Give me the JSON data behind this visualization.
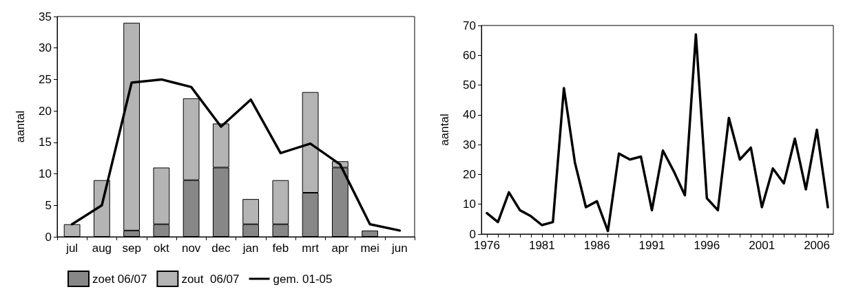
{
  "chart_data": [
    {
      "type": "bar",
      "ylabel": "aantal",
      "stacked": true,
      "legend": "bottom",
      "grid": false,
      "marker": "none",
      "categories": [
        "jul",
        "aug",
        "sep",
        "okt",
        "nov",
        "dec",
        "jan",
        "feb",
        "mrt",
        "apr",
        "mei",
        "jun"
      ],
      "ylim": [
        0,
        35
      ],
      "yticks": [
        0,
        5,
        10,
        15,
        20,
        25,
        30,
        35
      ],
      "series": [
        {
          "name": "zoet 06/07",
          "color": "#878787",
          "values": [
            0,
            0,
            1,
            2,
            9,
            11,
            2,
            2,
            7,
            11,
            1,
            0
          ]
        },
        {
          "name": "zout  06/07",
          "color": "#b4b4b4",
          "values": [
            2,
            9,
            33,
            9,
            13,
            7,
            4,
            7,
            16,
            1,
            0,
            0
          ]
        },
        {
          "name": "gem. 01-05",
          "type": "line",
          "color": "#000000",
          "values": [
            2,
            5,
            24.5,
            25,
            23.8,
            17.5,
            21.8,
            13.3,
            14.8,
            11.5,
            2,
            1
          ]
        }
      ]
    },
    {
      "type": "line",
      "ylabel": "aantal",
      "grid": false,
      "marker": "none",
      "color": "#000000",
      "x": [
        1976,
        1977,
        1978,
        1979,
        1980,
        1981,
        1982,
        1983,
        1984,
        1985,
        1986,
        1987,
        1988,
        1989,
        1990,
        1991,
        1992,
        1993,
        1994,
        1995,
        1996,
        1997,
        1998,
        1999,
        2000,
        2001,
        2002,
        2003,
        2004,
        2005,
        2006,
        2007
      ],
      "values": [
        7,
        4,
        14,
        8,
        6,
        3,
        4,
        49,
        24,
        9,
        11,
        1,
        27,
        25,
        26,
        8,
        28,
        21,
        13,
        67,
        12,
        8,
        39,
        25,
        29,
        9,
        22,
        17,
        32,
        15,
        35,
        9
      ],
      "xlim": [
        1975.5,
        2007.5
      ],
      "xticks": [
        1976,
        {
          "value": 1977,
          "label": null
        },
        {
          "value": 1978,
          "label": null
        },
        {
          "value": 1979,
          "label": null
        },
        {
          "value": 1980,
          "label": null
        },
        1981,
        {
          "value": 1982,
          "label": null
        },
        {
          "value": 1983,
          "label": null
        },
        {
          "value": 1984,
          "label": null
        },
        {
          "value": 1985,
          "label": null
        },
        1986,
        {
          "value": 1987,
          "label": null
        },
        {
          "value": 1988,
          "label": null
        },
        {
          "value": 1989,
          "label": null
        },
        {
          "value": 1990,
          "label": null
        },
        1991,
        {
          "value": 1992,
          "label": null
        },
        {
          "value": 1993,
          "label": null
        },
        {
          "value": 1994,
          "label": null
        },
        {
          "value": 1995,
          "label": null
        },
        1996,
        {
          "value": 1997,
          "label": null
        },
        {
          "value": 1998,
          "label": null
        },
        {
          "value": 1999,
          "label": null
        },
        {
          "value": 2000,
          "label": null
        },
        2001,
        {
          "value": 2002,
          "label": null
        },
        {
          "value": 2003,
          "label": null
        },
        {
          "value": 2004,
          "label": null
        },
        {
          "value": 2005,
          "label": null
        },
        2006,
        {
          "value": 2007,
          "label": null
        }
      ],
      "ylim": [
        0,
        70
      ],
      "yticks": [
        0,
        10,
        20,
        30,
        40,
        50,
        60,
        70
      ]
    }
  ]
}
